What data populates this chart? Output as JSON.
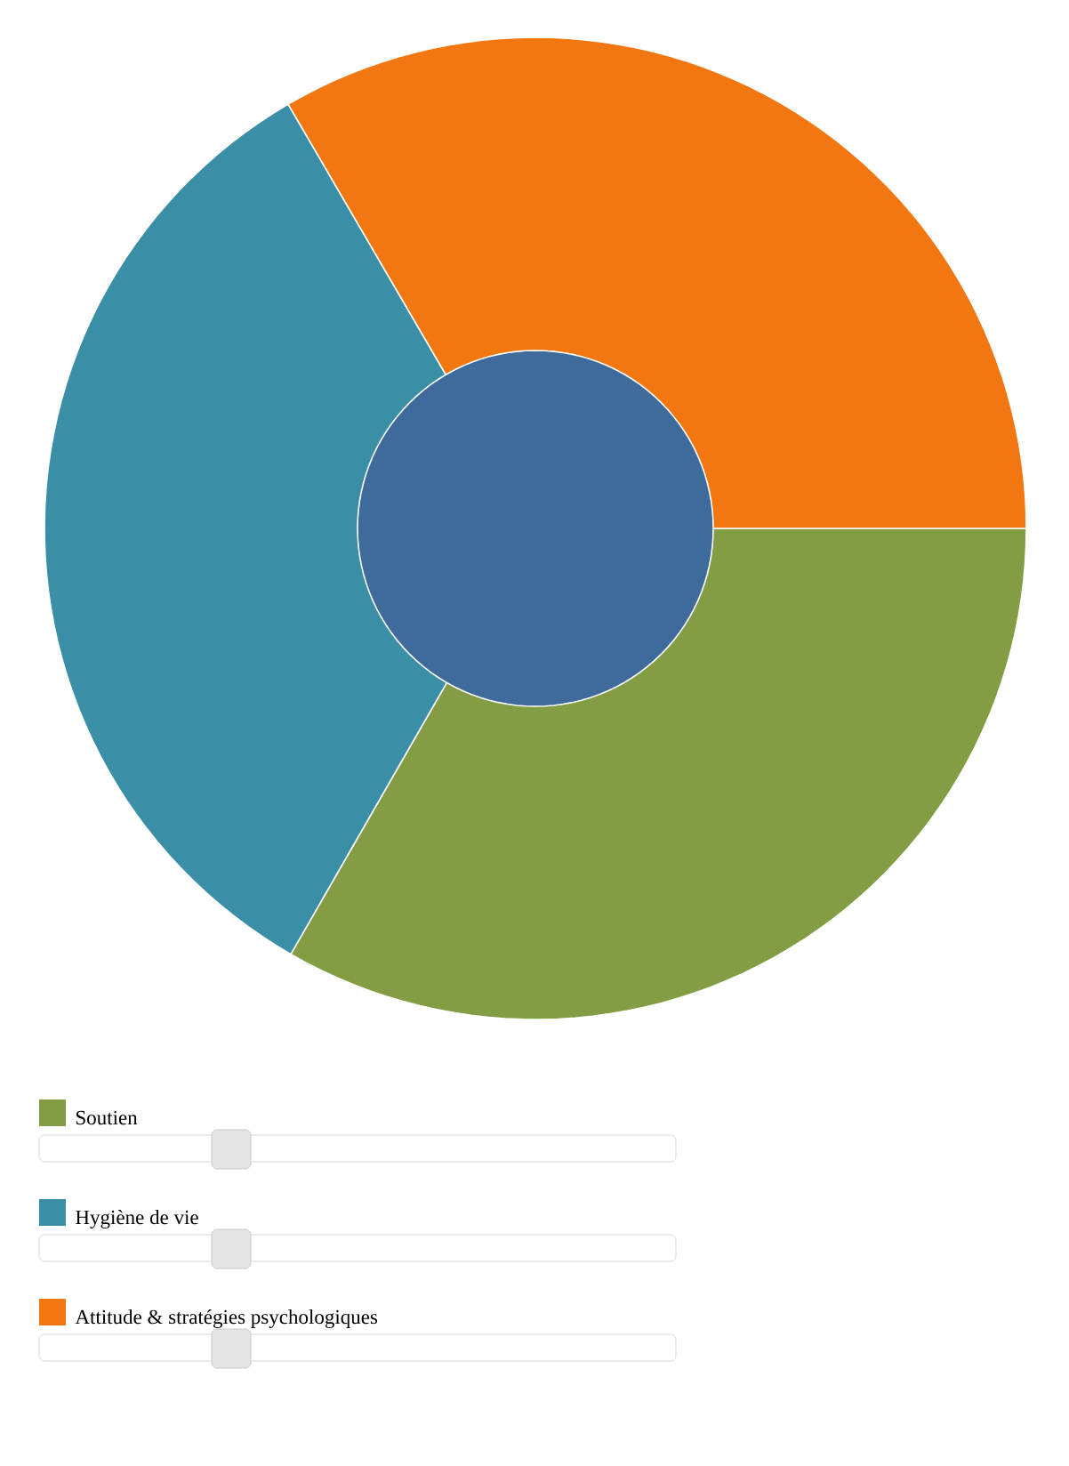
{
  "chart_data": {
    "type": "donut",
    "categories": [
      "Soutien",
      "Hygiène de vie",
      "Attitude & stratégies psychologiques"
    ],
    "values": [
      33.3,
      33.3,
      33.4
    ],
    "colors": [
      "#829d43",
      "#3a8fa7",
      "#f37710"
    ],
    "legend": "bottom"
  }
}
